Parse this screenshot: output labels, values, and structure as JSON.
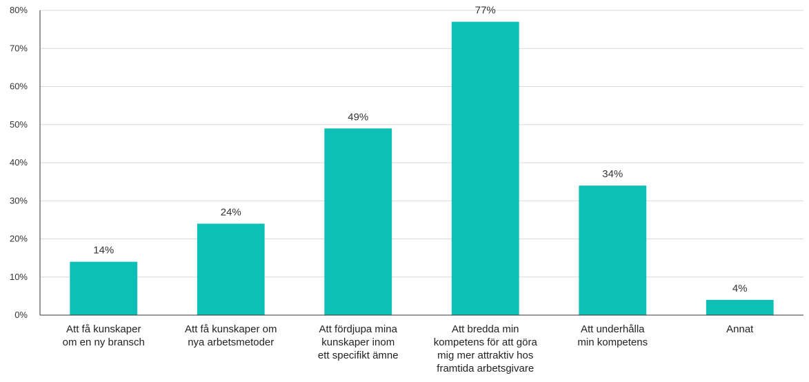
{
  "chart_data": {
    "type": "bar",
    "categories": [
      [
        "Att få kunskaper",
        "om en ny bransch"
      ],
      [
        "Att få kunskaper om",
        "nya arbetsmetoder"
      ],
      [
        "Att fördjupa mina",
        "kunskaper inom",
        "ett specifikt ämne"
      ],
      [
        "Att bredda min",
        "kompetens för att göra",
        "mig mer attraktiv hos",
        "framtida arbetsgivare"
      ],
      [
        "Att underhålla",
        "min kompetens"
      ],
      [
        "Annat"
      ]
    ],
    "values": [
      14,
      24,
      49,
      77,
      34,
      4
    ],
    "data_labels": [
      "14%",
      "24%",
      "49%",
      "77%",
      "34%",
      "4%"
    ],
    "y_ticks": [
      0,
      10,
      20,
      30,
      40,
      50,
      60,
      70,
      80
    ],
    "y_tick_labels": [
      "0%",
      "10%",
      "20%",
      "30%",
      "40%",
      "50%",
      "60%",
      "70%",
      "80%"
    ],
    "ylim": [
      0,
      80
    ],
    "grid": true,
    "bar_color": "#0dc0b6",
    "title": "",
    "xlabel": "",
    "ylabel": ""
  }
}
